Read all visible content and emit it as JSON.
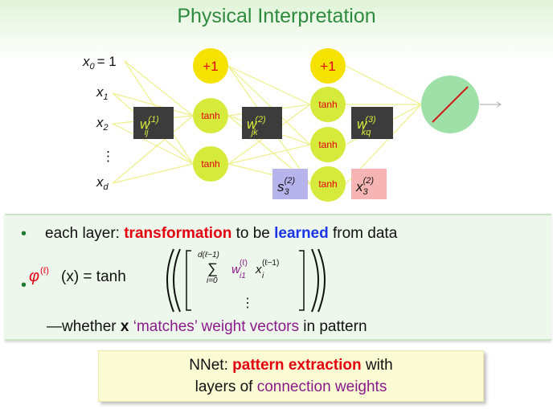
{
  "title": "Physical Interpretation",
  "network": {
    "inputs": {
      "x0": "x",
      "x0_sub": "0",
      "x0_eq": "= 1",
      "x1": "x",
      "x1_sub": "1",
      "x2": "x",
      "x2_sub": "2",
      "dots": "⋮",
      "xd": "x",
      "xd_sub": "d"
    },
    "bias_label": "+1",
    "tanh_label": "tanh",
    "weight_labels": [
      {
        "w": "w",
        "sup": "(1)",
        "sub": "ij"
      },
      {
        "w": "w",
        "sup": "(2)",
        "sub": "jk"
      },
      {
        "w": "w",
        "sup": "(3)",
        "sub": "kq"
      }
    ],
    "s_label": {
      "base": "s",
      "sub": "3",
      "sup": "(2)"
    },
    "x_out_label": {
      "base": "x",
      "sub": "3",
      "sup": "(2)"
    },
    "colors": {
      "bias": "#f6e200",
      "hidden": "#d6ea3c",
      "output": "#9ee0a8",
      "weight_box": "#3c3c3c",
      "s_box": "#b7b4ec",
      "x_box": "#f6b4b4",
      "edges": "#eef08a"
    }
  },
  "bullets": {
    "b1": {
      "prefix": "each layer: ",
      "red": "transformation",
      "mid": " to be ",
      "blue": "learned",
      "suffix": " from data"
    },
    "b2": {
      "phi": "φ",
      "phi_sup": "(ℓ)",
      "arg": "(x) = tanh",
      "sum_top": "d(ℓ−1)",
      "sum_sym": "∑",
      "sum_bottom": "i=0",
      "w": "w",
      "w_sup": "(ℓ)",
      "w_sub": "i1",
      "x": "x",
      "x_sup": "(ℓ−1)",
      "x_sub": "i",
      "vdots": "⋮"
    },
    "b3": {
      "prefix": "—whether ",
      "bold": "x",
      "purple1": " ‘matches’",
      "mid": " weight vectors",
      "purple2": "",
      "suffix": " in pattern"
    }
  },
  "summary": {
    "line1_prefix": "NNet: ",
    "line1_red": "pattern extraction",
    "line1_suffix": " with",
    "line2_prefix": "layers of ",
    "line2_purple": "connection weights"
  }
}
